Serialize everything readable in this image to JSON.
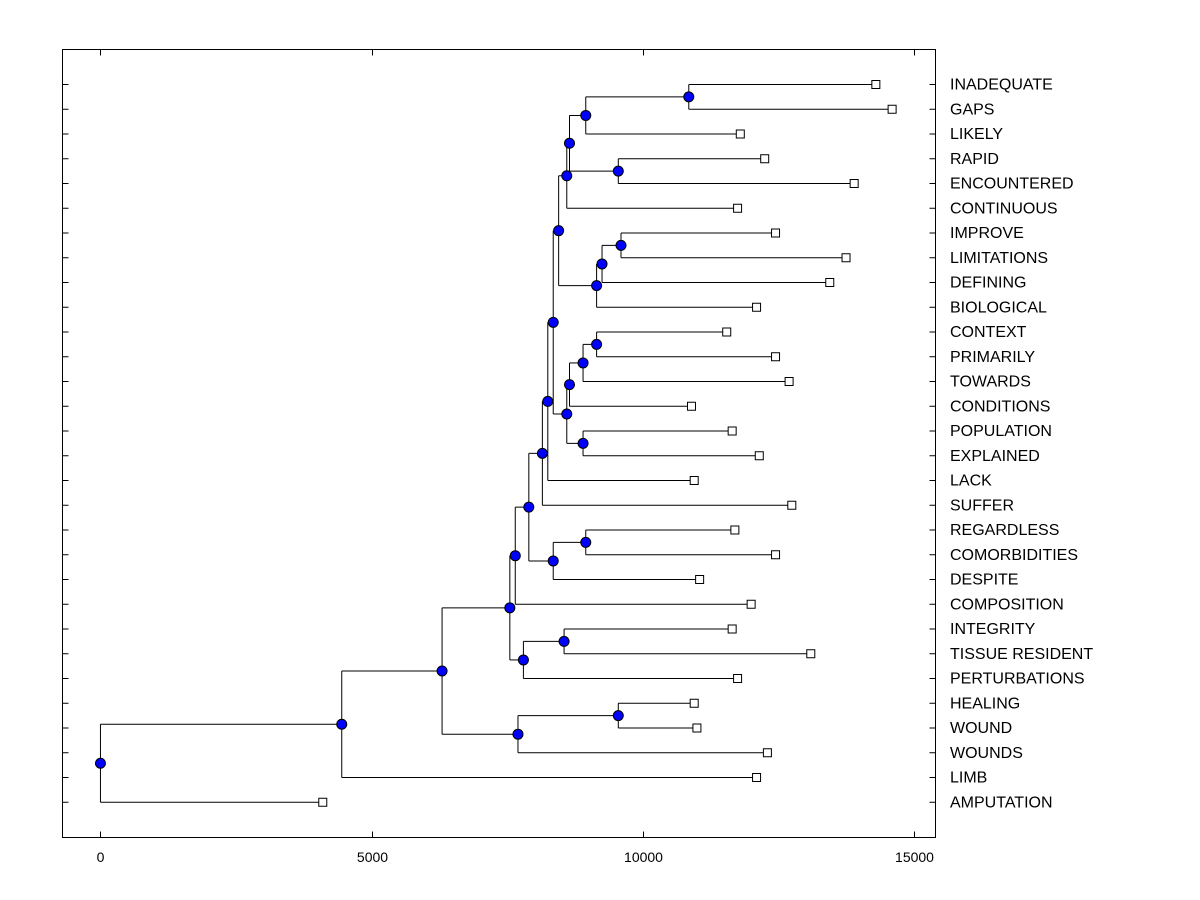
{
  "chart_data": {
    "type": "dendrogram",
    "title": "",
    "xlabel": "",
    "ylabel": "",
    "xlim": [
      -700,
      15400
    ],
    "xticks": [
      0,
      5000,
      10000,
      15000
    ],
    "xtick_labels": [
      "0",
      "5000",
      "10000",
      "15000"
    ],
    "node_color": "#0000ff",
    "leaf_marker_color": "#ffffff",
    "line_color": "#000000",
    "leaves": [
      {
        "label": "INADEQUATE",
        "x": 14300
      },
      {
        "label": "GAPS",
        "x": 14600
      },
      {
        "label": "LIKELY",
        "x": 11800
      },
      {
        "label": "RAPID",
        "x": 12250
      },
      {
        "label": "ENCOUNTERED",
        "x": 13900
      },
      {
        "label": "CONTINUOUS",
        "x": 11750
      },
      {
        "label": "IMPROVE",
        "x": 12450
      },
      {
        "label": "LIMITATIONS",
        "x": 13750
      },
      {
        "label": "DEFINING",
        "x": 13450
      },
      {
        "label": "BIOLOGICAL",
        "x": 12100
      },
      {
        "label": "CONTEXT",
        "x": 11550
      },
      {
        "label": "PRIMARILY",
        "x": 12450
      },
      {
        "label": "TOWARDS",
        "x": 12700
      },
      {
        "label": "CONDITIONS",
        "x": 10900
      },
      {
        "label": "POPULATION",
        "x": 11650
      },
      {
        "label": "EXPLAINED",
        "x": 12150
      },
      {
        "label": "LACK",
        "x": 10950
      },
      {
        "label": "SUFFER",
        "x": 12750
      },
      {
        "label": "REGARDLESS",
        "x": 11700
      },
      {
        "label": "COMORBIDITIES",
        "x": 12450
      },
      {
        "label": "DESPITE",
        "x": 11050
      },
      {
        "label": "COMPOSITION",
        "x": 12000
      },
      {
        "label": "INTEGRITY",
        "x": 11650
      },
      {
        "label": "TISSUE RESIDENT",
        "x": 13100
      },
      {
        "label": "PERTURBATIONS",
        "x": 11750
      },
      {
        "label": "HEALING",
        "x": 10950
      },
      {
        "label": "WOUND",
        "x": 11000
      },
      {
        "label": "WOUNDS",
        "x": 12300
      },
      {
        "label": "LIMB",
        "x": 12100
      },
      {
        "label": "AMPUTATION",
        "x": 4100
      }
    ],
    "merges": [
      {
        "id": "n1",
        "a": "INADEQUATE",
        "b": "GAPS",
        "height": 10850
      },
      {
        "id": "n2",
        "a": "n1",
        "b": "LIKELY",
        "height": 8950
      },
      {
        "id": "n3",
        "a": "RAPID",
        "b": "ENCOUNTERED",
        "height": 9550
      },
      {
        "id": "n4",
        "a": "n2",
        "b": "n3",
        "height": 8650
      },
      {
        "id": "n5",
        "a": "n4",
        "b": "CONTINUOUS",
        "height": 8600
      },
      {
        "id": "n6",
        "a": "IMPROVE",
        "b": "LIMITATIONS",
        "height": 9600
      },
      {
        "id": "n7",
        "a": "n6",
        "b": "DEFINING",
        "height": 9250
      },
      {
        "id": "n8",
        "a": "n7",
        "b": "BIOLOGICAL",
        "height": 9150
      },
      {
        "id": "n9",
        "a": "n5",
        "b": "n8",
        "height": 8450
      },
      {
        "id": "n10",
        "a": "CONTEXT",
        "b": "PRIMARILY",
        "height": 9150
      },
      {
        "id": "n11",
        "a": "n10",
        "b": "TOWARDS",
        "height": 8900
      },
      {
        "id": "n12",
        "a": "n11",
        "b": "CONDITIONS",
        "height": 8650
      },
      {
        "id": "n13",
        "a": "POPULATION",
        "b": "EXPLAINED",
        "height": 8900
      },
      {
        "id": "n14",
        "a": "n12",
        "b": "n13",
        "height": 8600
      },
      {
        "id": "n15",
        "a": "n9",
        "b": "n14",
        "height": 8350
      },
      {
        "id": "n16",
        "a": "n15",
        "b": "LACK",
        "height": 8250
      },
      {
        "id": "n17",
        "a": "n16",
        "b": "SUFFER",
        "height": 8150
      },
      {
        "id": "n18",
        "a": "REGARDLESS",
        "b": "COMORBIDITIES",
        "height": 8950
      },
      {
        "id": "n19",
        "a": "n18",
        "b": "DESPITE",
        "height": 8350
      },
      {
        "id": "n20",
        "a": "n17",
        "b": "n19",
        "height": 7900
      },
      {
        "id": "n21",
        "a": "n20",
        "b": "COMPOSITION",
        "height": 7650
      },
      {
        "id": "n22",
        "a": "INTEGRITY",
        "b": "TISSUE RESIDENT",
        "height": 8550
      },
      {
        "id": "n23",
        "a": "n22",
        "b": "PERTURBATIONS",
        "height": 7800
      },
      {
        "id": "n24",
        "a": "n21",
        "b": "n23",
        "height": 7550
      },
      {
        "id": "n25",
        "a": "HEALING",
        "b": "WOUND",
        "height": 9550
      },
      {
        "id": "n26",
        "a": "n25",
        "b": "WOUNDS",
        "height": 7700
      },
      {
        "id": "n27",
        "a": "n24",
        "b": "n26",
        "height": 6300
      },
      {
        "id": "n28",
        "a": "n27",
        "b": "LIMB",
        "height": 4450
      },
      {
        "id": "n29",
        "a": "n28",
        "b": "AMPUTATION",
        "height": 0
      }
    ]
  }
}
